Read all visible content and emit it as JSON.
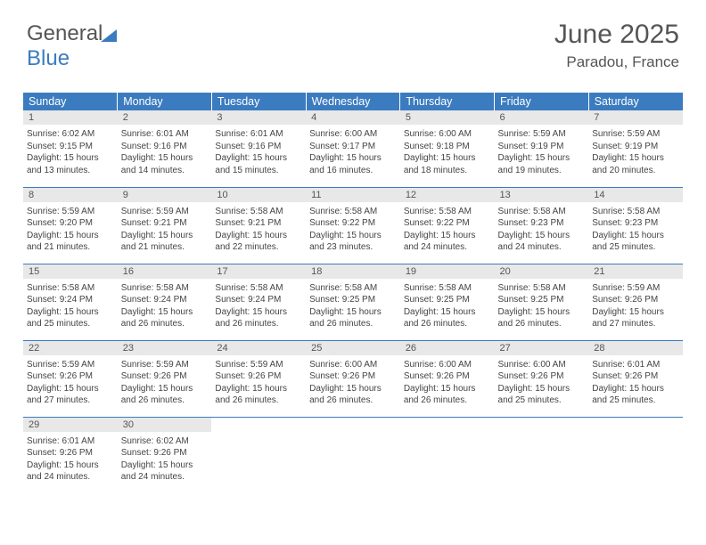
{
  "brand": {
    "part1": "General",
    "part2": "Blue"
  },
  "title": "June 2025",
  "location": "Paradou, France",
  "colors": {
    "header_bg": "#3b7bbf",
    "header_text": "#ffffff",
    "daynum_bg": "#e8e8e8",
    "text": "#555555",
    "cell_text": "#444444",
    "rule": "#3b7bbf",
    "page_bg": "#ffffff"
  },
  "typography": {
    "title_fontsize": 30,
    "location_fontsize": 17,
    "header_fontsize": 12.5,
    "cell_fontsize": 10
  },
  "weekdays": [
    "Sunday",
    "Monday",
    "Tuesday",
    "Wednesday",
    "Thursday",
    "Friday",
    "Saturday"
  ],
  "days": [
    {
      "n": 1,
      "sunrise": "6:02 AM",
      "sunset": "9:15 PM",
      "daylight": "15 hours and 13 minutes."
    },
    {
      "n": 2,
      "sunrise": "6:01 AM",
      "sunset": "9:16 PM",
      "daylight": "15 hours and 14 minutes."
    },
    {
      "n": 3,
      "sunrise": "6:01 AM",
      "sunset": "9:16 PM",
      "daylight": "15 hours and 15 minutes."
    },
    {
      "n": 4,
      "sunrise": "6:00 AM",
      "sunset": "9:17 PM",
      "daylight": "15 hours and 16 minutes."
    },
    {
      "n": 5,
      "sunrise": "6:00 AM",
      "sunset": "9:18 PM",
      "daylight": "15 hours and 18 minutes."
    },
    {
      "n": 6,
      "sunrise": "5:59 AM",
      "sunset": "9:19 PM",
      "daylight": "15 hours and 19 minutes."
    },
    {
      "n": 7,
      "sunrise": "5:59 AM",
      "sunset": "9:19 PM",
      "daylight": "15 hours and 20 minutes."
    },
    {
      "n": 8,
      "sunrise": "5:59 AM",
      "sunset": "9:20 PM",
      "daylight": "15 hours and 21 minutes."
    },
    {
      "n": 9,
      "sunrise": "5:59 AM",
      "sunset": "9:21 PM",
      "daylight": "15 hours and 21 minutes."
    },
    {
      "n": 10,
      "sunrise": "5:58 AM",
      "sunset": "9:21 PM",
      "daylight": "15 hours and 22 minutes."
    },
    {
      "n": 11,
      "sunrise": "5:58 AM",
      "sunset": "9:22 PM",
      "daylight": "15 hours and 23 minutes."
    },
    {
      "n": 12,
      "sunrise": "5:58 AM",
      "sunset": "9:22 PM",
      "daylight": "15 hours and 24 minutes."
    },
    {
      "n": 13,
      "sunrise": "5:58 AM",
      "sunset": "9:23 PM",
      "daylight": "15 hours and 24 minutes."
    },
    {
      "n": 14,
      "sunrise": "5:58 AM",
      "sunset": "9:23 PM",
      "daylight": "15 hours and 25 minutes."
    },
    {
      "n": 15,
      "sunrise": "5:58 AM",
      "sunset": "9:24 PM",
      "daylight": "15 hours and 25 minutes."
    },
    {
      "n": 16,
      "sunrise": "5:58 AM",
      "sunset": "9:24 PM",
      "daylight": "15 hours and 26 minutes."
    },
    {
      "n": 17,
      "sunrise": "5:58 AM",
      "sunset": "9:24 PM",
      "daylight": "15 hours and 26 minutes."
    },
    {
      "n": 18,
      "sunrise": "5:58 AM",
      "sunset": "9:25 PM",
      "daylight": "15 hours and 26 minutes."
    },
    {
      "n": 19,
      "sunrise": "5:58 AM",
      "sunset": "9:25 PM",
      "daylight": "15 hours and 26 minutes."
    },
    {
      "n": 20,
      "sunrise": "5:58 AM",
      "sunset": "9:25 PM",
      "daylight": "15 hours and 26 minutes."
    },
    {
      "n": 21,
      "sunrise": "5:59 AM",
      "sunset": "9:26 PM",
      "daylight": "15 hours and 27 minutes."
    },
    {
      "n": 22,
      "sunrise": "5:59 AM",
      "sunset": "9:26 PM",
      "daylight": "15 hours and 27 minutes."
    },
    {
      "n": 23,
      "sunrise": "5:59 AM",
      "sunset": "9:26 PM",
      "daylight": "15 hours and 26 minutes."
    },
    {
      "n": 24,
      "sunrise": "5:59 AM",
      "sunset": "9:26 PM",
      "daylight": "15 hours and 26 minutes."
    },
    {
      "n": 25,
      "sunrise": "6:00 AM",
      "sunset": "9:26 PM",
      "daylight": "15 hours and 26 minutes."
    },
    {
      "n": 26,
      "sunrise": "6:00 AM",
      "sunset": "9:26 PM",
      "daylight": "15 hours and 26 minutes."
    },
    {
      "n": 27,
      "sunrise": "6:00 AM",
      "sunset": "9:26 PM",
      "daylight": "15 hours and 25 minutes."
    },
    {
      "n": 28,
      "sunrise": "6:01 AM",
      "sunset": "9:26 PM",
      "daylight": "15 hours and 25 minutes."
    },
    {
      "n": 29,
      "sunrise": "6:01 AM",
      "sunset": "9:26 PM",
      "daylight": "15 hours and 24 minutes."
    },
    {
      "n": 30,
      "sunrise": "6:02 AM",
      "sunset": "9:26 PM",
      "daylight": "15 hours and 24 minutes."
    }
  ],
  "labels": {
    "sunrise": "Sunrise:",
    "sunset": "Sunset:",
    "daylight": "Daylight:"
  }
}
